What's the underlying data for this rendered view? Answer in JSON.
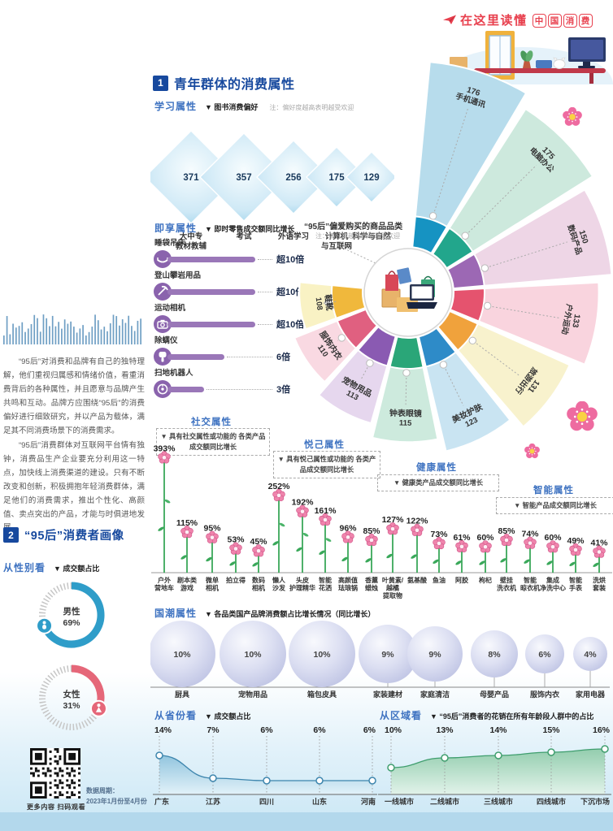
{
  "header": {
    "icon": "paper-plane-icon",
    "slogan_prefix": "在这里读懂",
    "slogan_boxed": [
      "中",
      "国",
      "消",
      "费"
    ],
    "accent_color": "#e8404e"
  },
  "section1": {
    "badge": "1",
    "title": "青年群体的消费属性",
    "learning": {
      "label": "学习属性",
      "subtitle": "▼ 图书消费偏好",
      "note": "注：偏好度越高表明越受欢迎"
    },
    "instant": {
      "label": "即享属性",
      "subtitle": "▼ 即时零售成交额同比增长"
    },
    "fan": {
      "title": "“95后”偏爱购买的商品品类",
      "note": "注：偏好度越高表明越受欢迎"
    },
    "social": {
      "label": "社交属性",
      "note": "▼ 具有社交属性或功能的 各类产品成交额同比增长"
    },
    "pleasure": {
      "label": "悦己属性",
      "note": "▼ 具有悦己属性或功能的 各类产品成交额同比增长"
    },
    "health": {
      "label": "健康属性",
      "note": "▼ 健康类产品成交额同比增长"
    },
    "smart": {
      "label": "智能属性",
      "note": "▼ 智能产品成交额同比增长"
    }
  },
  "section2": {
    "badge": "2",
    "title": "“95后”消费者画像",
    "gender": {
      "label": "从性别看",
      "subtitle": "▼ 成交额占比"
    },
    "guochao": {
      "label": "国潮属性",
      "subtitle": "▼ 各品类国产品牌消费额占比增长情况（同比增长）"
    },
    "province": {
      "label": "从省份看",
      "subtitle": "▼ 成交额占比"
    },
    "region": {
      "label": "从区域看",
      "subtitle": "▼ “95后”消费者的花销在所有年龄段人群中的占比"
    }
  },
  "left_column": {
    "para1": "“95后”对消费和品牌有自己的独特理解，他们重视归属感和情绪价值，看重消费背后的各种属性，并且愿意与品牌产生共鸣和互动。品牌方应围绕“95后”的消费偏好进行细致研究，并以产品为载体，满足其不同消费场景下的消费需求。",
    "para2": "“95后”消费群体对互联网平台情有独钟，消费品生产企业要充分利用这一特点，加快线上消费渠道的建设。只有不断改变和创新，积极拥抱年轻消费群体，满足他们的消费需求，推出个性化、高颜值、卖点突出的产品，才能与时俱进地发展。"
  },
  "footer": {
    "qr_caption": "更多内容 扫码观看",
    "period_label": "数据周期：",
    "period_value": "2023年1月份至4月份"
  },
  "chart_data": [
    {
      "id": "learning_preference",
      "type": "bar",
      "title": "学习属性 图书消费偏好",
      "categories": [
        "大中专教材教辅",
        "考试",
        "外语学习",
        "计算机与互联网",
        "科学与自然"
      ],
      "label_lines": [
        [
          "大中专",
          "教材教辅"
        ],
        [
          "考试"
        ],
        [
          "外语学习"
        ],
        [
          "计算机",
          "与互联网"
        ],
        [
          "科学与自然"
        ]
      ],
      "values": [
        371,
        357,
        256,
        175,
        129
      ],
      "note": "偏好度越高表明越受欢迎"
    },
    {
      "id": "instant_retail_growth",
      "type": "bar",
      "title": "即时零售成交额同比增长",
      "categories": [
        "睡袋吊床",
        "登山攀岩用品",
        "运动相机",
        "除螨仪",
        "扫地机器人"
      ],
      "values": [
        10,
        10,
        10,
        6,
        3
      ],
      "values_text": [
        "超10倍",
        "超10倍",
        "超10倍",
        "6倍",
        "3倍"
      ],
      "icons": [
        "hammock-icon",
        "climbing-pick-icon",
        "action-camera-icon",
        "mite-remover-icon",
        "robot-vacuum-icon"
      ],
      "bar_color": "#9a77b8"
    },
    {
      "id": "fan_categories",
      "type": "pie",
      "title": "“95后”偏爱购买的商品品类",
      "categories": [
        "手机通讯",
        "电脑办公",
        "数码产品",
        "户外运动",
        "旅游出行",
        "美妆护肤",
        "钟表眼镜",
        "宠物用品",
        "服饰内衣",
        "鞋靴"
      ],
      "values": [
        176,
        175,
        150,
        133,
        131,
        123,
        115,
        113,
        110,
        108
      ],
      "colors_light": [
        "#b7dcec",
        "#cde9dd",
        "#eed6e6",
        "#f9d4de",
        "#f8f2cd",
        "#c9e4f2",
        "#cdeadd",
        "#e6d7ee",
        "#f9d9e2",
        "#f9f2c4"
      ],
      "colors_strong": [
        "#1693c2",
        "#22a68c",
        "#9c68b4",
        "#e5536e",
        "#f0a23c",
        "#2e8bc8",
        "#2aa678",
        "#8a5ab2",
        "#e06080",
        "#f0b83c"
      ]
    },
    {
      "id": "social_growth",
      "type": "bar",
      "unit": "%",
      "title": "具有社交属性或功能的各类产品成交额同比增长",
      "categories": [
        "户外营地车",
        "剧本类游戏",
        "微单相机",
        "拍立得",
        "数码相机"
      ],
      "label_lines": [
        [
          "户外",
          "营地车"
        ],
        [
          "剧本类",
          "游戏"
        ],
        [
          "微单",
          "相机"
        ],
        [
          "拍立得"
        ],
        [
          "数码",
          "相机"
        ]
      ],
      "values": [
        393,
        115,
        95,
        53,
        45
      ]
    },
    {
      "id": "pleasure_growth",
      "type": "bar",
      "unit": "%",
      "title": "具有悦己属性或功能的各类产品成交额同比增长",
      "categories": [
        "懒人沙发",
        "头皮护理精华",
        "智能花洒",
        "高颜值珐琅锅",
        "香薰蜡烛"
      ],
      "label_lines": [
        [
          "懒人",
          "沙发"
        ],
        [
          "头皮",
          "护理精华"
        ],
        [
          "智能",
          "花洒"
        ],
        [
          "高颜值",
          "珐琅锅"
        ],
        [
          "香薰",
          "蜡烛"
        ]
      ],
      "values": [
        252,
        192,
        161,
        96,
        85
      ]
    },
    {
      "id": "health_growth",
      "type": "bar",
      "unit": "%",
      "title": "健康类产品成交额同比增长",
      "categories": [
        "叶黄素/越橘提取物",
        "氨基酸",
        "鱼油",
        "阿胶",
        "枸杞"
      ],
      "label_lines": [
        [
          "叶黄素/",
          "越橘",
          "提取物"
        ],
        [
          "氨基酸"
        ],
        [
          "鱼油"
        ],
        [
          "阿胶"
        ],
        [
          "枸杞"
        ]
      ],
      "values": [
        127,
        122,
        73,
        61,
        60
      ]
    },
    {
      "id": "smart_growth",
      "type": "bar",
      "unit": "%",
      "title": "智能产品成交额同比增长",
      "categories": [
        "壁挂洗衣机",
        "智能晾衣机",
        "集成净洗中心",
        "智能手表",
        "洗烘套装"
      ],
      "label_lines": [
        [
          "壁挂",
          "洗衣机"
        ],
        [
          "智能",
          "晾衣机"
        ],
        [
          "集成",
          "净洗中心"
        ],
        [
          "智能",
          "手表"
        ],
        [
          "洗烘",
          "套装"
        ]
      ],
      "values": [
        85,
        74,
        60,
        49,
        41
      ]
    },
    {
      "id": "gender_share",
      "type": "pie",
      "title": "从性别看 成交额占比",
      "unit": "%",
      "categories": [
        "男性",
        "女性"
      ],
      "values": [
        69,
        31
      ],
      "colors": [
        "#2f9dc9",
        "#e56779"
      ],
      "icons": [
        "male-icon",
        "female-icon"
      ]
    },
    {
      "id": "guochao_growth",
      "type": "bubble",
      "unit": "%",
      "title": "各品类国产品牌消费额占比增长情况（同比增长）",
      "categories": [
        "厨具",
        "宠物用品",
        "箱包皮具",
        "家装建材",
        "家庭清洁",
        "母婴产品",
        "服饰内衣",
        "家用电器"
      ],
      "values": [
        10,
        10,
        10,
        9,
        9,
        8,
        6,
        4
      ]
    },
    {
      "id": "province_share",
      "type": "area",
      "unit": "%",
      "title": "从省份看 成交额占比",
      "categories": [
        "广东",
        "江苏",
        "四川",
        "山东",
        "河南"
      ],
      "values": [
        14,
        7,
        6,
        6,
        6
      ],
      "colors": {
        "line": "#3d85ad",
        "fill_top": "#8ec3dd",
        "fill_bottom": "#e3f2f9"
      }
    },
    {
      "id": "region_share",
      "type": "area",
      "unit": "%",
      "title": "从区域看 “95后”消费者的花销在所有年龄段人群中的占比",
      "categories": [
        "一线城市",
        "二线城市",
        "三线城市",
        "四线城市",
        "下沉市场"
      ],
      "values": [
        10,
        13,
        14,
        15,
        16
      ],
      "colors": {
        "line": "#3f9e6e",
        "fill_top": "#8fcbaa",
        "fill_bottom": "#e2f3e9"
      }
    }
  ]
}
